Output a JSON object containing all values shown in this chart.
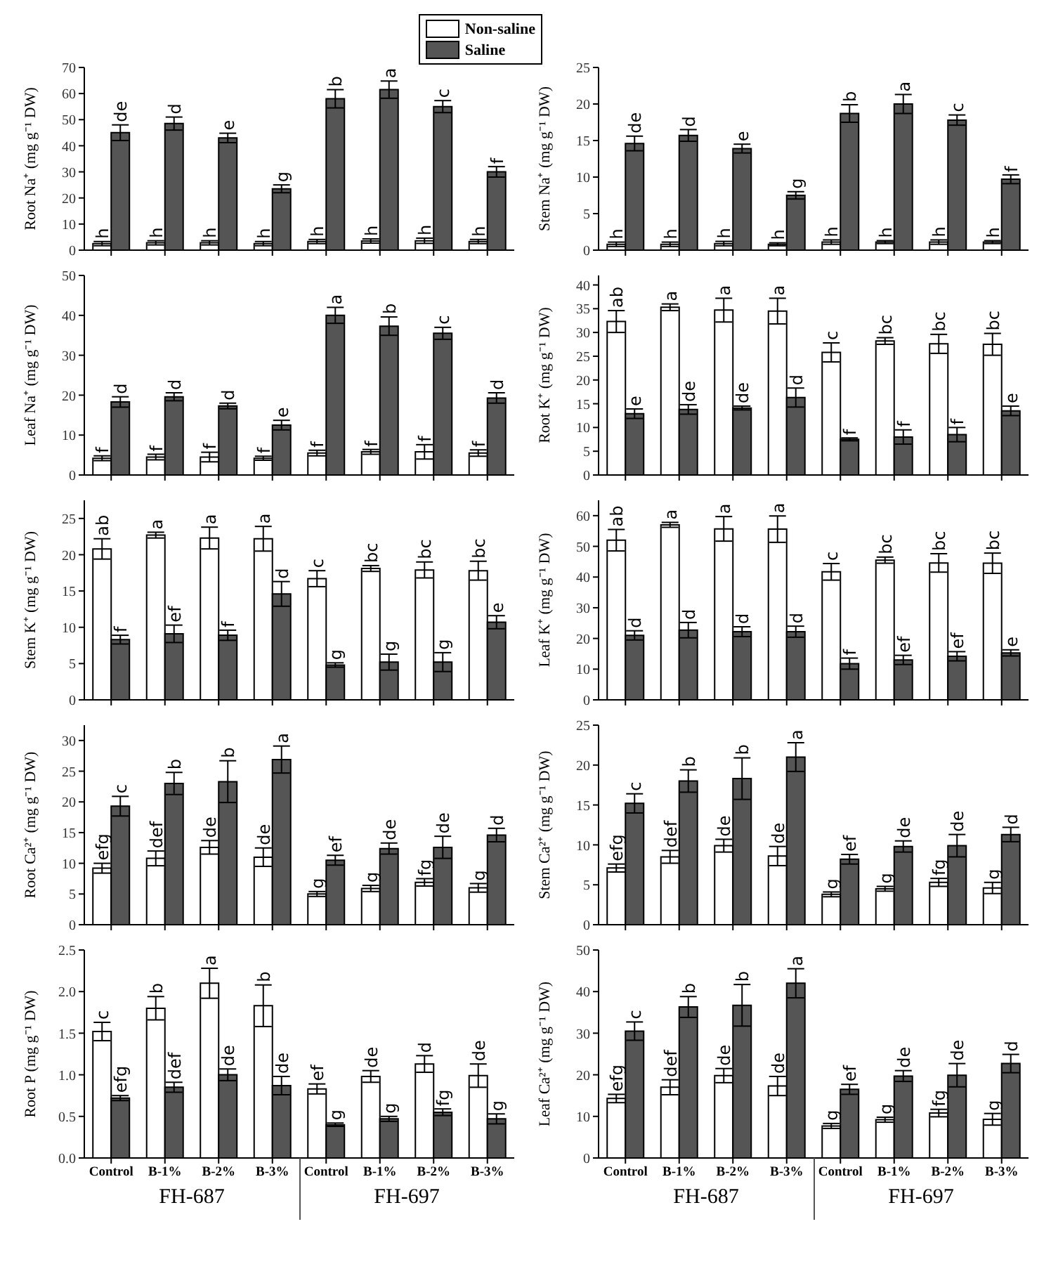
{
  "chart_data": [
    {
      "type": "bar",
      "categories": [
        null,
        null,
        null,
        null,
        null,
        null,
        null,
        null
      ],
      "ylabel": "Root Na⁺ (mg g⁻¹ DW)",
      "ylim": [
        0,
        70
      ],
      "yticks": [
        0,
        10,
        20,
        30,
        40,
        50,
        60,
        70
      ],
      "tick_labels": "y",
      "legend": "top right",
      "series": [
        {
          "name": "Non-saline",
          "color": "#ffffff",
          "values": [
            2.5,
            2.8,
            2.8,
            2.5,
            3.3,
            3.5,
            3.6,
            3.3
          ],
          "errors": [
            0.8,
            0.8,
            0.8,
            0.8,
            0.8,
            0.8,
            1,
            0.8
          ],
          "value_labels": [
            "h",
            "h",
            "h",
            "h",
            "h",
            "h",
            "h",
            "h"
          ]
        },
        {
          "name": "Saline",
          "color": "#555555",
          "values": [
            45,
            48.5,
            43,
            23.5,
            58,
            61.5,
            55,
            30
          ],
          "errors": [
            3,
            2.5,
            1.8,
            1.5,
            3.5,
            3.3,
            2.3,
            2
          ],
          "value_labels": [
            "de",
            "d",
            "e",
            "g",
            "b",
            "a",
            "c",
            "f"
          ]
        }
      ]
    },
    {
      "type": "bar",
      "categories": [
        null,
        null,
        null,
        null,
        null,
        null,
        null,
        null
      ],
      "ylabel": "Stem Na⁺ (mg g⁻¹ DW)",
      "ylim": [
        0,
        25
      ],
      "yticks": [
        0,
        5,
        10,
        15,
        20,
        25
      ],
      "tick_labels": "y",
      "series": [
        {
          "color": "#ffffff",
          "values": [
            0.8,
            0.8,
            0.9,
            0.8,
            1.1,
            1.1,
            1.1,
            1.1
          ],
          "errors": [
            0.3,
            0.3,
            0.3,
            0.2,
            0.3,
            0.2,
            0.3,
            0.2
          ],
          "value_labels": [
            "h",
            "h",
            "h",
            "h",
            "h",
            "h",
            "h",
            "h"
          ]
        },
        {
          "color": "#555555",
          "values": [
            14.6,
            15.7,
            13.9,
            7.5,
            18.7,
            20,
            17.8,
            9.7
          ],
          "errors": [
            1,
            0.8,
            0.6,
            0.5,
            1.2,
            1.3,
            0.7,
            0.6
          ],
          "value_labels": [
            "de",
            "d",
            "e",
            "g",
            "b",
            "a",
            "c",
            "f"
          ]
        }
      ]
    },
    {
      "type": "bar",
      "categories": [
        null,
        null,
        null,
        null,
        null,
        null,
        null,
        null
      ],
      "ylabel": "Leaf Na⁺ (mg g⁻¹ DW)",
      "ylim": [
        0,
        50
      ],
      "yticks": [
        0,
        10,
        20,
        30,
        40,
        50
      ],
      "tick_labels": "y",
      "series": [
        {
          "color": "#ffffff",
          "values": [
            4.2,
            4.5,
            4.5,
            4.2,
            5.5,
            5.8,
            5.8,
            5.5
          ],
          "errors": [
            0.6,
            0.7,
            1.2,
            0.5,
            0.7,
            0.6,
            1.8,
            0.8
          ],
          "value_labels": [
            "f",
            "f",
            "f",
            "f",
            "f",
            "f",
            "f",
            "f"
          ]
        },
        {
          "color": "#555555",
          "values": [
            18.3,
            19.6,
            17.3,
            12.5,
            40,
            37.3,
            35.5,
            19.3
          ],
          "errors": [
            1.3,
            1,
            0.7,
            1.2,
            2,
            2.3,
            1.5,
            1.3
          ],
          "value_labels": [
            "d",
            "d",
            "d",
            "e",
            "a",
            "b",
            "c",
            "d"
          ]
        }
      ]
    },
    {
      "type": "bar",
      "categories": [
        null,
        null,
        null,
        null,
        null,
        null,
        null,
        null
      ],
      "ylabel": "Root K⁺ (mg g⁻¹ DW)",
      "ylim": [
        0,
        42
      ],
      "yticks": [
        0,
        5,
        10,
        15,
        20,
        25,
        30,
        35,
        40
      ],
      "tick_labels": "y",
      "series": [
        {
          "color": "#ffffff",
          "values": [
            32.3,
            35.3,
            34.7,
            34.5,
            25.8,
            28.2,
            27.6,
            27.5
          ],
          "errors": [
            2.3,
            0.7,
            2.5,
            2.7,
            2,
            0.7,
            2,
            2.3
          ],
          "value_labels": [
            "ab",
            "a",
            "a",
            "a",
            "c",
            "bc",
            "bc",
            "bc"
          ]
        },
        {
          "color": "#555555",
          "values": [
            12.9,
            13.8,
            14.1,
            16.3,
            7.5,
            8,
            8.5,
            13.5
          ],
          "errors": [
            1,
            1,
            0.4,
            2,
            0.3,
            1.5,
            1.5,
            1
          ],
          "value_labels": [
            "e",
            "de",
            "de",
            "d",
            "f",
            "f",
            "f",
            "e"
          ]
        }
      ]
    },
    {
      "type": "bar",
      "categories": [
        null,
        null,
        null,
        null,
        null,
        null,
        null,
        null
      ],
      "ylabel": "Stem K⁺ (mg g⁻¹ DW)",
      "ylim": [
        0,
        27.5
      ],
      "yticks": [
        0,
        5,
        10,
        15,
        20,
        25
      ],
      "tick_labels": "y",
      "series": [
        {
          "color": "#ffffff",
          "values": [
            20.8,
            22.7,
            22.3,
            22.2,
            16.7,
            18.1,
            17.9,
            17.8
          ],
          "errors": [
            1.4,
            0.4,
            1.5,
            1.7,
            1.1,
            0.4,
            1.1,
            1.3
          ],
          "value_labels": [
            "ab",
            "a",
            "a",
            "a",
            "c",
            "bc",
            "bc",
            "bc"
          ]
        },
        {
          "color": "#555555",
          "values": [
            8.3,
            9.1,
            8.9,
            14.6,
            4.8,
            5.2,
            5.2,
            10.7
          ],
          "errors": [
            0.6,
            1.2,
            0.7,
            1.7,
            0.3,
            1.1,
            1.3,
            0.9
          ],
          "value_labels": [
            "f",
            "ef",
            "f",
            "d",
            "g",
            "g",
            "g",
            "e"
          ]
        }
      ]
    },
    {
      "type": "bar",
      "categories": [
        null,
        null,
        null,
        null,
        null,
        null,
        null,
        null
      ],
      "ylabel": "Leaf K⁺ (mg g⁻¹ DW)",
      "ylim": [
        0,
        65
      ],
      "yticks": [
        0,
        10,
        20,
        30,
        40,
        50,
        60
      ],
      "tick_labels": "y",
      "series": [
        {
          "color": "#ffffff",
          "values": [
            52,
            57,
            55.7,
            55.6,
            41.7,
            45.5,
            44.6,
            44.5
          ],
          "errors": [
            3.5,
            0.8,
            4,
            4.3,
            2.7,
            1,
            3,
            3.3
          ],
          "value_labels": [
            "ab",
            "a",
            "a",
            "a",
            "c",
            "bc",
            "bc",
            "bc"
          ]
        },
        {
          "color": "#555555",
          "values": [
            21,
            22.7,
            22.2,
            22.2,
            11.8,
            13,
            14.2,
            15.3
          ],
          "errors": [
            1.5,
            2.5,
            1.6,
            1.8,
            1.8,
            1.5,
            1.5,
            1
          ],
          "value_labels": [
            "d",
            "d",
            "d",
            "d",
            "f",
            "ef",
            "ef",
            "e"
          ]
        }
      ]
    },
    {
      "type": "bar",
      "categories": [
        null,
        null,
        null,
        null,
        null,
        null,
        null,
        null
      ],
      "ylabel": "Root Ca²⁺ (mg g⁻¹ DW)",
      "ylim": [
        0,
        32.5
      ],
      "yticks": [
        0,
        5,
        10,
        15,
        20,
        25,
        30
      ],
      "tick_labels": "y",
      "series": [
        {
          "color": "#ffffff",
          "values": [
            9.2,
            10.8,
            12.6,
            11,
            5,
            5.9,
            6.9,
            6
          ],
          "errors": [
            0.8,
            1.2,
            1.1,
            1.5,
            0.4,
            0.5,
            0.6,
            0.7
          ],
          "value_labels": [
            "efg",
            "def",
            "de",
            "de",
            "g",
            "g",
            "fg",
            "g"
          ]
        },
        {
          "color": "#555555",
          "values": [
            19.3,
            23,
            23.3,
            26.9,
            10.5,
            12.4,
            12.6,
            14.6
          ],
          "errors": [
            1.6,
            1.8,
            3.4,
            2.2,
            0.8,
            0.9,
            1.8,
            1.1
          ],
          "value_labels": [
            "c",
            "b",
            "b",
            "a",
            "ef",
            "de",
            "de",
            "d"
          ]
        }
      ]
    },
    {
      "type": "bar",
      "categories": [
        null,
        null,
        null,
        null,
        null,
        null,
        null,
        null
      ],
      "ylabel": "Stem Ca²⁺ (mg g⁻¹ DW)",
      "ylim": [
        0,
        25
      ],
      "yticks": [
        0,
        5,
        10,
        15,
        20,
        25
      ],
      "tick_labels": "y",
      "series": [
        {
          "color": "#ffffff",
          "values": [
            7.1,
            8.5,
            9.9,
            8.6,
            3.8,
            4.5,
            5.3,
            4.6
          ],
          "errors": [
            0.5,
            0.8,
            0.8,
            1.2,
            0.3,
            0.3,
            0.5,
            0.7
          ],
          "value_labels": [
            "efg",
            "def",
            "de",
            "de",
            "g",
            "g",
            "fg",
            "g"
          ]
        },
        {
          "color": "#555555",
          "values": [
            15.2,
            18,
            18.3,
            21,
            8.2,
            9.8,
            9.9,
            11.3
          ],
          "errors": [
            1.2,
            1.4,
            2.6,
            1.8,
            0.6,
            0.7,
            1.4,
            0.9
          ],
          "value_labels": [
            "c",
            "b",
            "b",
            "a",
            "ef",
            "de",
            "de",
            "d"
          ]
        }
      ]
    },
    {
      "type": "bar",
      "categories": [
        "Control",
        "B-1%",
        "B-2%",
        "B-3%",
        "Control",
        "B-1%",
        "B-2%",
        "B-3%"
      ],
      "ylabel": "Root P (mg g⁻¹ DW)",
      "ylim": [
        0,
        2.5
      ],
      "yticks": [
        {
          "value": 0,
          "label": "0.0"
        },
        {
          "value": 0.5,
          "label": "0.5"
        },
        {
          "value": 1,
          "label": "1.0"
        },
        {
          "value": 1.5,
          "label": "1.5"
        },
        {
          "value": 2,
          "label": "2.0"
        },
        {
          "value": 2.5,
          "label": "2.5"
        }
      ],
      "annotations": [
        "FH-687",
        "FH-697"
      ],
      "series": [
        {
          "color": "#ffffff",
          "values": [
            1.52,
            1.8,
            2.1,
            1.83,
            0.83,
            0.98,
            1.13,
            0.99
          ],
          "errors": [
            0.11,
            0.14,
            0.18,
            0.25,
            0.06,
            0.07,
            0.1,
            0.14
          ],
          "value_labels": [
            "c",
            "b",
            "a",
            "b",
            "ef",
            "de",
            "d",
            "de"
          ]
        },
        {
          "color": "#555555",
          "values": [
            0.72,
            0.85,
            1,
            0.87,
            0.4,
            0.47,
            0.55,
            0.47
          ],
          "errors": [
            0.03,
            0.06,
            0.07,
            0.11,
            0.02,
            0.03,
            0.04,
            0.06
          ],
          "value_labels": [
            "efg",
            "def",
            "de",
            "de",
            "g",
            "g",
            "fg",
            "g"
          ]
        }
      ]
    },
    {
      "type": "bar",
      "categories": [
        "Control",
        "B-1%",
        "B-2%",
        "B-3%",
        "Control",
        "B-1%",
        "B-2%",
        "B-3%"
      ],
      "ylabel": "Leaf Ca²⁺ (mg g⁻¹ DW)",
      "ylim": [
        0,
        50
      ],
      "yticks": [
        0,
        10,
        20,
        30,
        40,
        50
      ],
      "annotations": [
        "FH-687",
        "FH-697"
      ],
      "series": [
        {
          "color": "#ffffff",
          "values": [
            14.3,
            17,
            19.8,
            17.3,
            7.7,
            9.2,
            10.8,
            9.3
          ],
          "errors": [
            1,
            1.8,
            1.7,
            2.3,
            0.6,
            0.6,
            0.9,
            1.4
          ],
          "value_labels": [
            "efg",
            "def",
            "de",
            "de",
            "g",
            "g",
            "fg",
            "g"
          ]
        },
        {
          "color": "#555555",
          "values": [
            30.5,
            36.3,
            36.7,
            42,
            16.5,
            19.7,
            19.9,
            22.7
          ],
          "errors": [
            2.2,
            2.5,
            5,
            3.5,
            1.2,
            1.3,
            2.8,
            2.2
          ],
          "value_labels": [
            "c",
            "b",
            "b",
            "a",
            "ef",
            "de",
            "de",
            "d"
          ]
        }
      ]
    }
  ]
}
